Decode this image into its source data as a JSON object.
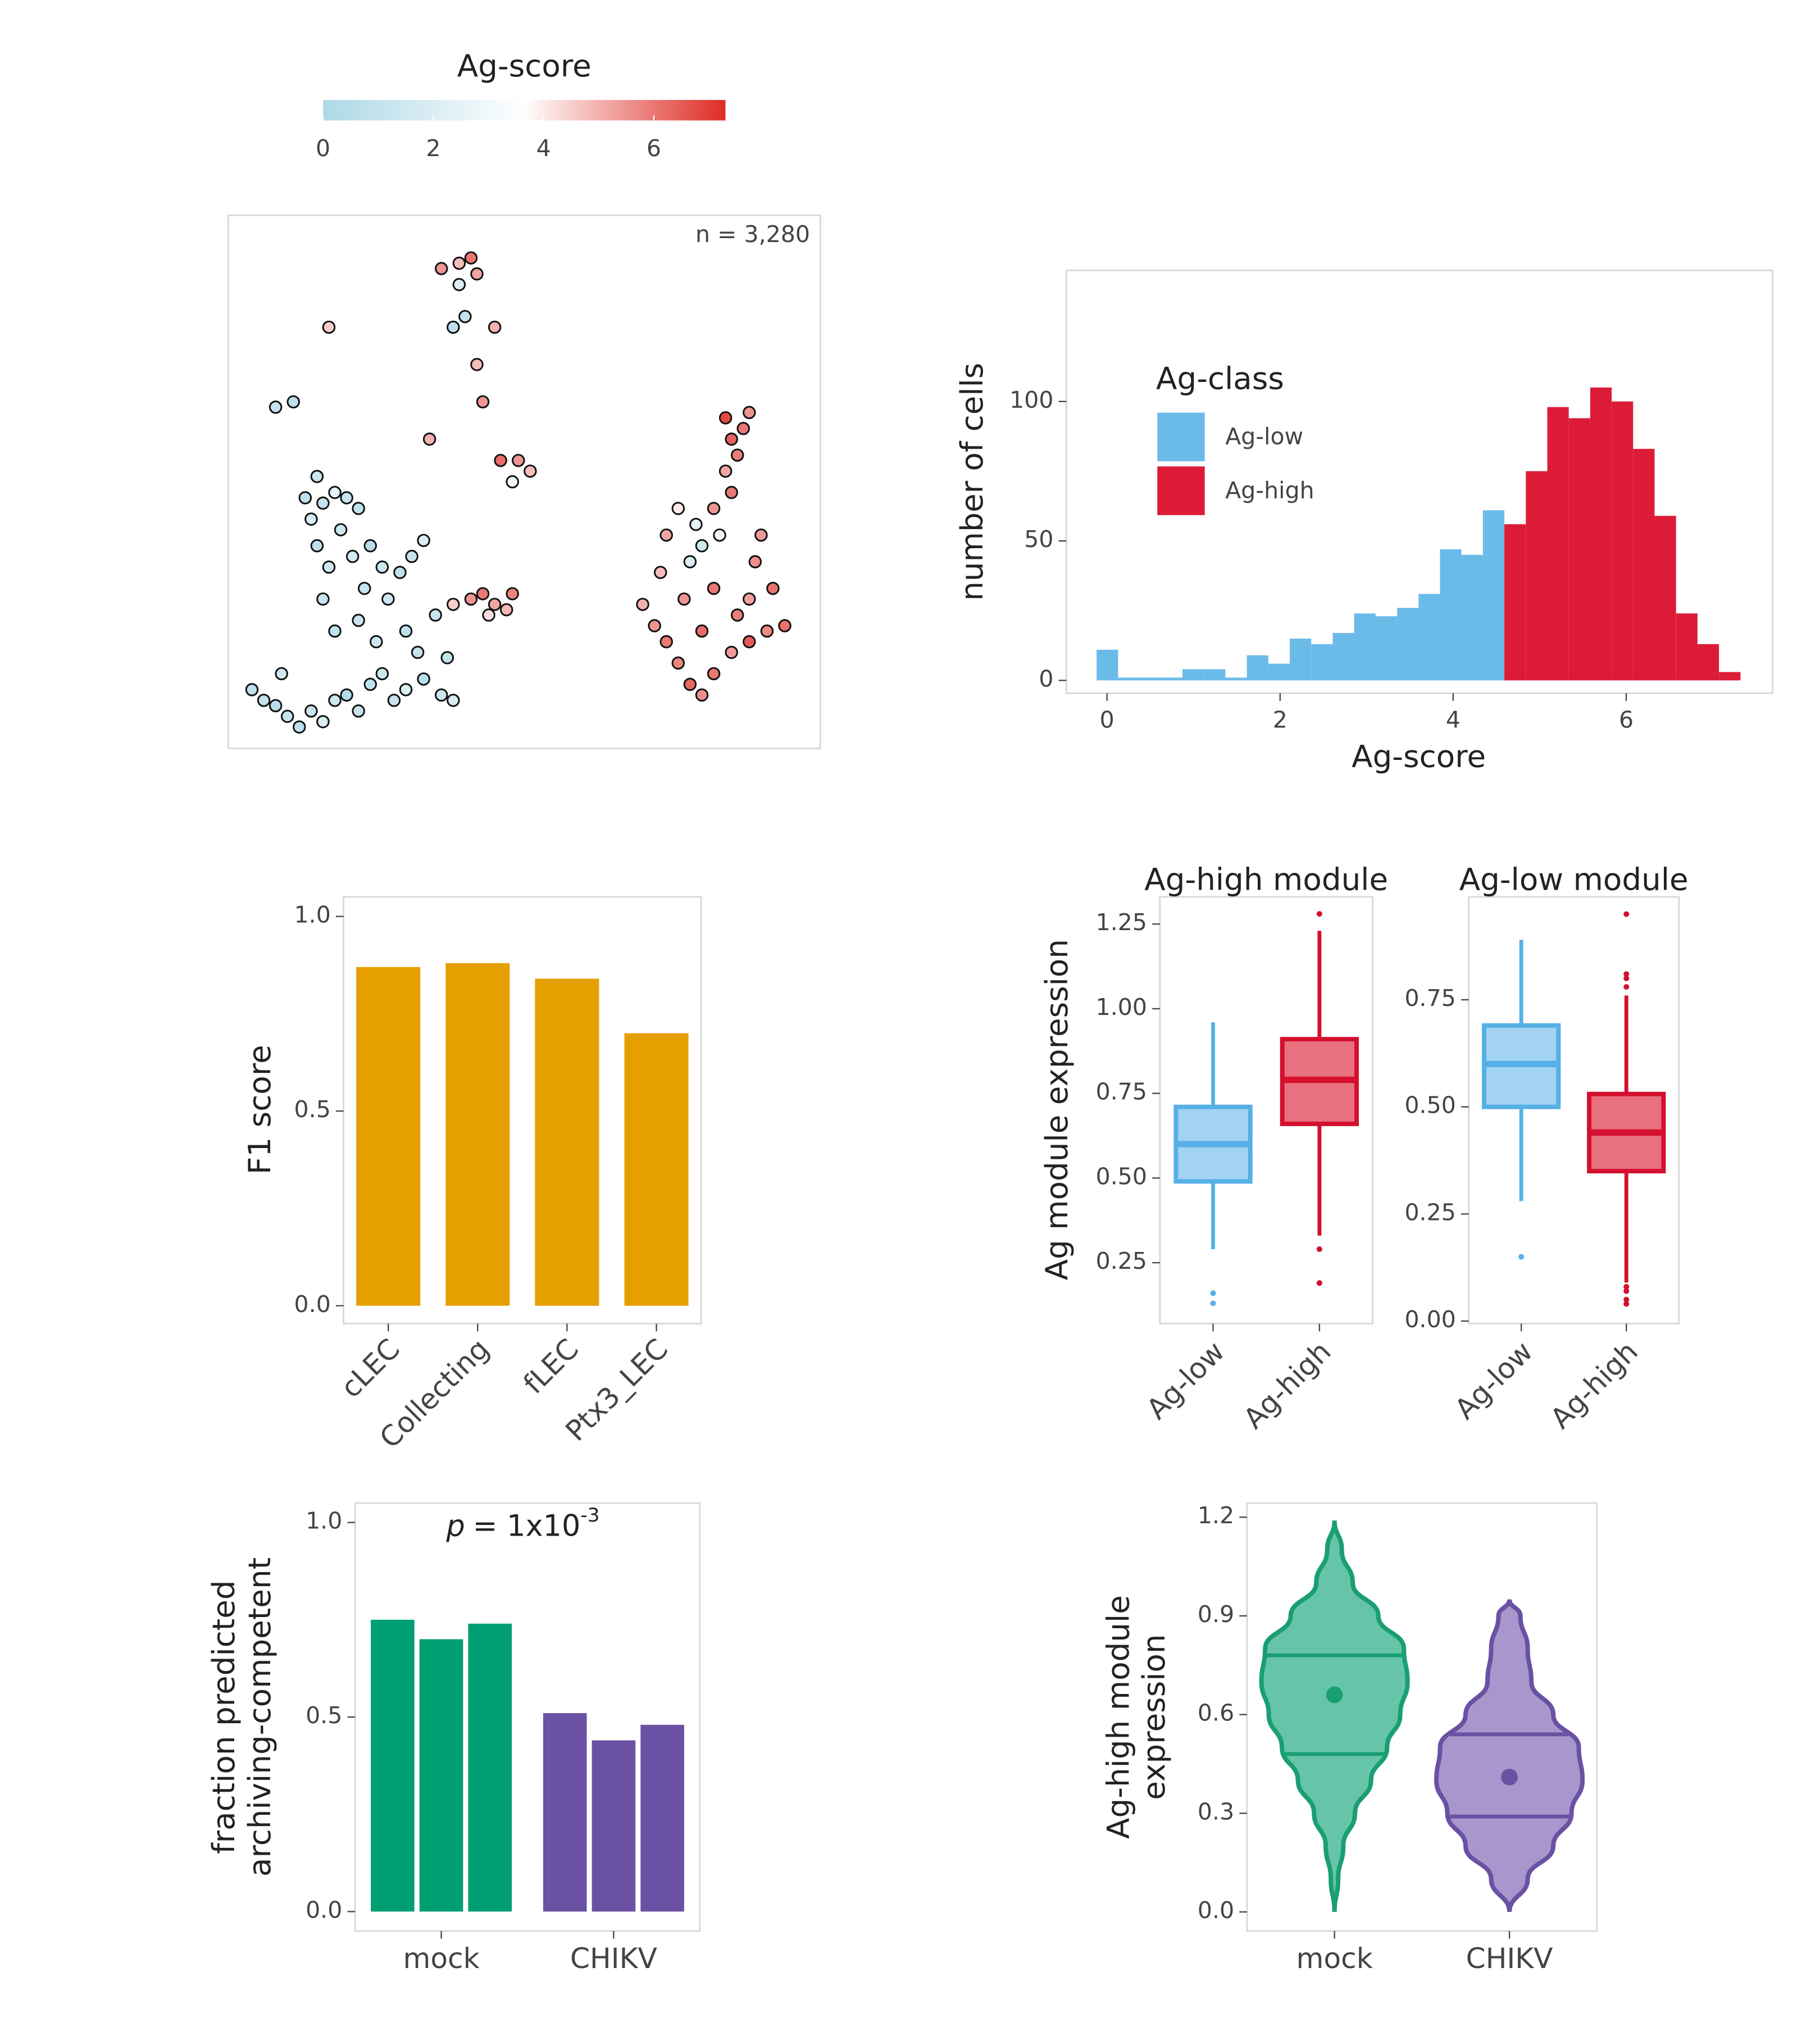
{
  "chart_data": [
    {
      "type": "scatter",
      "annotation": "n = 3,280",
      "xlim": [
        0,
        100
      ],
      "ylim": [
        0,
        100
      ],
      "colorbar": {
        "title": "Ag-score",
        "lim": [
          0,
          7.3
        ],
        "ticks": [
          0,
          2,
          4,
          6
        ],
        "colors": [
          "#add8e6",
          "#ffffff",
          "#de2d26"
        ],
        "color_stops": [
          0,
          3.65,
          7.3
        ]
      },
      "points": [
        [
          4,
          11,
          0.8
        ],
        [
          6,
          9,
          1
        ],
        [
          8,
          8,
          0.5
        ],
        [
          10,
          6,
          1.2
        ],
        [
          12,
          4,
          0.7
        ],
        [
          14,
          7,
          1
        ],
        [
          16,
          5,
          2
        ],
        [
          18,
          9,
          1.5
        ],
        [
          20,
          10,
          0.3
        ],
        [
          22,
          7,
          1
        ],
        [
          24,
          12,
          0.9
        ],
        [
          26,
          14,
          1.4
        ],
        [
          28,
          9,
          1.1
        ],
        [
          30,
          11,
          2.2
        ],
        [
          33,
          13,
          0.6
        ],
        [
          36,
          10,
          1.3
        ],
        [
          38,
          9,
          1.8
        ],
        [
          32,
          18,
          1
        ],
        [
          30,
          22,
          0.8
        ],
        [
          25,
          20,
          1.5
        ],
        [
          22,
          24,
          1.2
        ],
        [
          18,
          22,
          0.9
        ],
        [
          16,
          28,
          1.1
        ],
        [
          17,
          34,
          1.6
        ],
        [
          15,
          38,
          0.7
        ],
        [
          14,
          43,
          1.9
        ],
        [
          16,
          46,
          1
        ],
        [
          18,
          48,
          2.4
        ],
        [
          20,
          47,
          1.2
        ],
        [
          22,
          45,
          0.9
        ],
        [
          19,
          41,
          1.4
        ],
        [
          21,
          36,
          1.7
        ],
        [
          24,
          38,
          0.5
        ],
        [
          26,
          34,
          1.3
        ],
        [
          29,
          33,
          0.8
        ],
        [
          31,
          36,
          1.1
        ],
        [
          33,
          39,
          2
        ],
        [
          27,
          28,
          1.4
        ],
        [
          23,
          30,
          1
        ],
        [
          35,
          25,
          1.2
        ],
        [
          37,
          17,
          0.9
        ],
        [
          9,
          14,
          1.5
        ],
        [
          13,
          47,
          0.7
        ],
        [
          15,
          51,
          1.3
        ],
        [
          8,
          64,
          1.1
        ],
        [
          11,
          65,
          0.6
        ],
        [
          17,
          79,
          4.5
        ],
        [
          36,
          90,
          5.5
        ],
        [
          39,
          91,
          4.8
        ],
        [
          41,
          92,
          6
        ],
        [
          42,
          89,
          5.2
        ],
        [
          39,
          87,
          2
        ],
        [
          40,
          81,
          1
        ],
        [
          38,
          79,
          0.8
        ],
        [
          45,
          79,
          5
        ],
        [
          42,
          72,
          4.8
        ],
        [
          43,
          65,
          5.5
        ],
        [
          34,
          58,
          5
        ],
        [
          46,
          54,
          6.2
        ],
        [
          49,
          54,
          5.5
        ],
        [
          51,
          52,
          4.8
        ],
        [
          48,
          50,
          3
        ],
        [
          38,
          27,
          4.5
        ],
        [
          41,
          28,
          5.5
        ],
        [
          43,
          29,
          6
        ],
        [
          45,
          27,
          5.2
        ],
        [
          47,
          26,
          4.9
        ],
        [
          48,
          29,
          5.8
        ],
        [
          44,
          25,
          4.2
        ],
        [
          70,
          27,
          5
        ],
        [
          72,
          23,
          5.5
        ],
        [
          74,
          20,
          6
        ],
        [
          76,
          16,
          5.8
        ],
        [
          78,
          12,
          6.3
        ],
        [
          80,
          10,
          5.6
        ],
        [
          82,
          14,
          6
        ],
        [
          85,
          18,
          5.4
        ],
        [
          88,
          20,
          6.5
        ],
        [
          91,
          22,
          5.7
        ],
        [
          94,
          23,
          6.1
        ],
        [
          86,
          25,
          5.9
        ],
        [
          80,
          22,
          6.2
        ],
        [
          77,
          28,
          5.5
        ],
        [
          82,
          30,
          6
        ],
        [
          88,
          28,
          5.3
        ],
        [
          78,
          35,
          2
        ],
        [
          80,
          38,
          1.5
        ],
        [
          83,
          40,
          3
        ],
        [
          79,
          42,
          2.5
        ],
        [
          76,
          45,
          4
        ],
        [
          82,
          45,
          5.5
        ],
        [
          85,
          48,
          6
        ],
        [
          84,
          52,
          5.2
        ],
        [
          85,
          58,
          6.4
        ],
        [
          87,
          60,
          6
        ],
        [
          88,
          63,
          5.5
        ],
        [
          84,
          62,
          6.8
        ],
        [
          86,
          55,
          5.9
        ],
        [
          74,
          40,
          5.2
        ],
        [
          73,
          33,
          4.8
        ],
        [
          89,
          35,
          5.6
        ],
        [
          92,
          30,
          6.1
        ],
        [
          90,
          40,
          5.4
        ]
      ]
    },
    {
      "type": "histogram",
      "xlabel": "Ag-score",
      "ylabel": "number of cells",
      "xlim": [
        -0.47,
        7.69
      ],
      "ylim": [
        -4.6,
        147
      ],
      "xticks": [
        0,
        2,
        4,
        6
      ],
      "yticks": [
        0,
        50,
        100
      ],
      "bins": [
        -0.12,
        0.128,
        0.376,
        0.624,
        0.872,
        1.12,
        1.368,
        1.616,
        1.864,
        2.112,
        2.36,
        2.608,
        2.856,
        3.104,
        3.352,
        3.6,
        3.848,
        4.096,
        4.344,
        4.592,
        4.84,
        5.088,
        5.336,
        5.584,
        5.832,
        6.08,
        6.328,
        6.576,
        6.824,
        7.072,
        7.32
      ],
      "counts": [
        11,
        1,
        1,
        1,
        4,
        4,
        1,
        9,
        6,
        15,
        13,
        17,
        24,
        23,
        26,
        31,
        47,
        45,
        61,
        56,
        75,
        98,
        94,
        105,
        100,
        83,
        59,
        24,
        13,
        3
      ],
      "class": [
        0,
        0,
        0,
        0,
        0,
        0,
        0,
        0,
        0,
        0,
        0,
        0,
        0,
        0,
        0,
        0,
        0,
        0,
        0,
        1,
        1,
        1,
        1,
        1,
        1,
        1,
        1,
        1,
        1,
        1
      ],
      "legend": {
        "title": "Ag-class",
        "entries": [
          {
            "name": "Ag-low",
            "color": "#6bbbe9"
          },
          {
            "name": "Ag-high",
            "color": "#dc1c37"
          }
        ]
      }
    },
    {
      "type": "bar",
      "ylabel": "F1 score",
      "categories": [
        "cLEC",
        "Collecting",
        "fLEC",
        "Ptx3_LEC"
      ],
      "values": [
        0.87,
        0.88,
        0.84,
        0.7
      ],
      "color": "#e69f00",
      "ylim": [
        -0.046,
        1.05
      ],
      "yticks": [
        {
          "value": 0,
          "label": "0.0"
        },
        {
          "value": 0.5,
          "label": "0.5"
        },
        {
          "value": 1,
          "label": "1.0"
        }
      ]
    },
    {
      "type": "boxplot",
      "ylabel": "Ag module expression",
      "facets": [
        {
          "title": "Ag-high module",
          "ylim": [
            0.07,
            1.33
          ],
          "yticks": [
            0.25,
            {
              "value": 0.5,
              "label": "0.50"
            },
            0.75,
            {
              "value": 1,
              "label": "1.00"
            },
            1.25
          ],
          "boxes": [
            {
              "category": "Ag-low",
              "color": "#56b0e6",
              "fill": "#a3d3f3",
              "whisker_low": 0.29,
              "q1": 0.49,
              "median": 0.6,
              "q3": 0.71,
              "whisker_high": 0.96,
              "outliers": [
                0.16,
                0.13
              ]
            },
            {
              "category": "Ag-high",
              "color": "#d50f2e",
              "fill": "#e8707f",
              "whisker_low": 0.33,
              "q1": 0.66,
              "median": 0.79,
              "q3": 0.91,
              "whisker_high": 1.23,
              "outliers": [
                1.28,
                0.29,
                0.19
              ]
            }
          ]
        },
        {
          "title": "Ag-low module",
          "ylim": [
            -0.006,
            0.99
          ],
          "yticks": [
            {
              "value": 0,
              "label": "0.00"
            },
            0.25,
            {
              "value": 0.5,
              "label": "0.50"
            },
            0.75
          ],
          "boxes": [
            {
              "category": "Ag-low",
              "color": "#56b0e6",
              "fill": "#a3d3f3",
              "whisker_low": 0.28,
              "q1": 0.5,
              "median": 0.6,
              "q3": 0.69,
              "whisker_high": 0.89,
              "outliers": [
                0.15
              ]
            },
            {
              "category": "Ag-high",
              "color": "#d50f2e",
              "fill": "#e8707f",
              "whisker_low": 0.09,
              "q1": 0.35,
              "median": 0.44,
              "q3": 0.53,
              "whisker_high": 0.76,
              "outliers": [
                0.78,
                0.8,
                0.81,
                0.95,
                0.08,
                0.07,
                0.05,
                0.04
              ]
            }
          ]
        }
      ]
    },
    {
      "type": "grouped_bar",
      "ylabel": [
        "fraction predicted",
        "archiving-competent"
      ],
      "annotation": {
        "symbol": "p",
        "text": "= 1x10",
        "exponent": "-3"
      },
      "categories": [
        "mock",
        "CHIKV"
      ],
      "values": [
        [
          0.75,
          0.7,
          0.74
        ],
        [
          0.51,
          0.44,
          0.48
        ]
      ],
      "colors": [
        "#009e73",
        "#6a51a3"
      ],
      "ylim": [
        -0.05,
        1.05
      ],
      "yticks": [
        {
          "value": 0,
          "label": "0.0"
        },
        {
          "value": 0.5,
          "label": "0.5"
        },
        {
          "value": 1,
          "label": "1.0"
        }
      ]
    },
    {
      "type": "violin",
      "ylabel": [
        "Ag-high module",
        "expression"
      ],
      "categories": [
        "mock",
        "CHIKV"
      ],
      "ylim": [
        -0.058,
        1.243
      ],
      "yticks": [
        {
          "value": 0,
          "label": "0.0"
        },
        0.3,
        0.6,
        0.9,
        1.2
      ],
      "violins": [
        {
          "color": "#1a9e73",
          "fill": "#66c5a8",
          "min": 0,
          "max": 1.19,
          "q25": 0.48,
          "q75": 0.78,
          "mean": 0.66,
          "density_y": [
            0,
            0.1,
            0.2,
            0.3,
            0.4,
            0.5,
            0.6,
            0.7,
            0.8,
            0.9,
            1.0,
            1.1,
            1.19
          ],
          "density": [
            0,
            0.05,
            0.12,
            0.28,
            0.5,
            0.72,
            0.9,
            1,
            0.95,
            0.6,
            0.25,
            0.1,
            0
          ]
        },
        {
          "color": "#6a51a3",
          "fill": "#a797cc",
          "min": 0,
          "max": 0.95,
          "q25": 0.29,
          "q75": 0.54,
          "mean": 0.41,
          "density_y": [
            0,
            0.1,
            0.2,
            0.3,
            0.4,
            0.5,
            0.6,
            0.7,
            0.8,
            0.9,
            0.95
          ],
          "density": [
            0,
            0.25,
            0.6,
            0.85,
            1,
            0.95,
            0.6,
            0.3,
            0.25,
            0.15,
            0
          ]
        }
      ]
    }
  ]
}
